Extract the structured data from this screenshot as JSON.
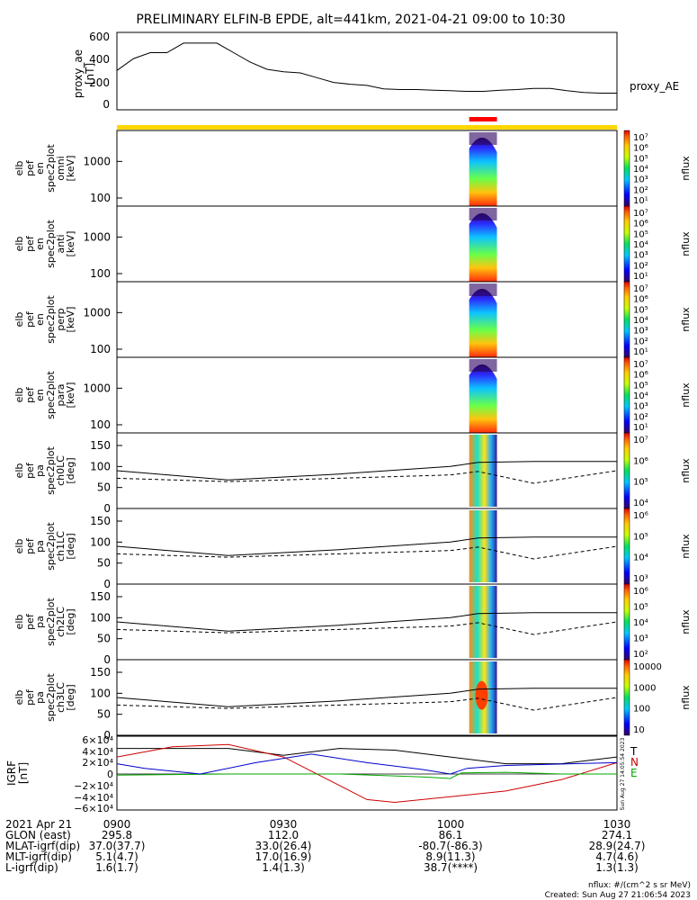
{
  "title": "PRELIMINARY ELFIN-B EPDE, alt=441km, 2021-04-21 09:00 to 10:30",
  "colors": {
    "sci_bar": "#ffd700",
    "sci_zone": "#ff0000",
    "bz": "#000000",
    "bn": "#cc0000",
    "be": "#00aa00",
    "bx_blue": "#0000cc"
  },
  "ae_panel": {
    "ylabel_lines": [
      "proxy_ae",
      "[nT]"
    ],
    "yticks": [
      "600",
      "400",
      "200",
      "0"
    ],
    "legend": "proxy_AE"
  },
  "spec_panels": [
    {
      "label_lines": [
        "elb",
        "pef",
        "en",
        "spec2plot",
        "omni",
        "[keV]"
      ],
      "yticks": [
        "1000",
        "100"
      ],
      "cbar_ticks": [
        "10⁷",
        "10⁶",
        "10⁵",
        "10⁴",
        "10³",
        "10²",
        "10¹"
      ],
      "cbar_label": "nflux"
    },
    {
      "label_lines": [
        "elb",
        "pef",
        "en",
        "spec2plot",
        "anti",
        "[keV]"
      ],
      "yticks": [
        "1000",
        "100"
      ],
      "cbar_ticks": [
        "10⁷",
        "10⁶",
        "10⁵",
        "10⁴",
        "10³",
        "10²",
        "10¹"
      ],
      "cbar_label": "nflux"
    },
    {
      "label_lines": [
        "elb",
        "pef",
        "en",
        "spec2plot",
        "perp",
        "[keV]"
      ],
      "yticks": [
        "1000",
        "100"
      ],
      "cbar_ticks": [
        "10⁷",
        "10⁶",
        "10⁵",
        "10⁴",
        "10³",
        "10²",
        "10¹"
      ],
      "cbar_label": "nflux"
    },
    {
      "label_lines": [
        "elb",
        "pef",
        "en",
        "spec2plot",
        "para",
        "[keV]"
      ],
      "yticks": [
        "1000",
        "100"
      ],
      "cbar_ticks": [
        "10⁷",
        "10⁶",
        "10⁵",
        "10⁴",
        "10³",
        "10²",
        "10¹"
      ],
      "cbar_label": "nflux"
    },
    {
      "label_lines": [
        "elb",
        "pef",
        "pa",
        "spec2plot",
        "ch0LC",
        "[deg]"
      ],
      "yticks": [
        "150",
        "100",
        "50",
        "0"
      ],
      "cbar_ticks": [
        "10⁷",
        "10⁶",
        "10⁵",
        "10⁴"
      ],
      "cbar_label": "nflux"
    },
    {
      "label_lines": [
        "elb",
        "pef",
        "pa",
        "spec2plot",
        "ch1LC",
        "[deg]"
      ],
      "yticks": [
        "150",
        "100",
        "50",
        "0"
      ],
      "cbar_ticks": [
        "10⁶",
        "10⁵",
        "10⁴",
        "10³"
      ],
      "cbar_label": "nflux"
    },
    {
      "label_lines": [
        "elb",
        "pef",
        "pa",
        "spec2plot",
        "ch2LC",
        "[deg]"
      ],
      "yticks": [
        "150",
        "100",
        "50",
        "0"
      ],
      "cbar_ticks": [
        "10⁶",
        "10⁵",
        "10⁴",
        "10³",
        "10²"
      ],
      "cbar_label": "nflux"
    },
    {
      "label_lines": [
        "elb",
        "pef",
        "pa",
        "spec2plot",
        "ch3LC",
        "[deg]"
      ],
      "yticks": [
        "150",
        "100",
        "50",
        "0"
      ],
      "cbar_ticks": [
        "10000",
        "1000",
        "100",
        "10"
      ],
      "cbar_label": "nflux"
    }
  ],
  "igrf_panel": {
    "ylabel_lines": [
      "IGRF",
      "[nT]"
    ],
    "yticks": [
      "6×10⁴",
      "4×10⁴",
      "2×10⁴",
      "0",
      "−2×10⁴",
      "−4×10⁴",
      "−6×10⁴"
    ],
    "legend": [
      "T",
      "N",
      "E"
    ],
    "side_stamp": "Sun Aug 27 14:05:54 2023"
  },
  "bottom_table": {
    "rows": [
      {
        "label": "2021 Apr 21",
        "values": [
          "0900",
          "0930",
          "1000",
          "1030"
        ]
      },
      {
        "label": "GLON (east)",
        "values": [
          "295.8",
          "112.0",
          "86.1",
          "274.1"
        ]
      },
      {
        "label": "MLAT-igrf(dip)",
        "values": [
          "37.0(37.7)",
          "33.0(26.4)",
          "-80.7(-86.3)",
          "28.9(24.7)"
        ]
      },
      {
        "label": "MLT-igrf(dip)",
        "values": [
          "5.1(4.7)",
          "17.0(16.9)",
          "8.9(11.3)",
          "4.7(4.6)"
        ]
      },
      {
        "label": "L-igrf(dip)",
        "values": [
          "1.6(1.7)",
          "1.4(1.3)",
          "38.7(****)",
          "1.3(1.3)"
        ]
      }
    ]
  },
  "footer": {
    "units": "nflux: #/(cm^2 s sr MeV)",
    "created": "Created: Sun Aug 27 21:06:54 2023"
  },
  "chart_data": {
    "type": "line",
    "title": "PRELIMINARY ELFIN-B EPDE, alt=441km, 2021-04-21 09:00 to 10:30",
    "x_range_minutes": [
      0,
      90
    ],
    "x_tick_labels": [
      "0900",
      "0930",
      "1000",
      "1030"
    ],
    "sci_zone_minutes": [
      63.4,
      68.4
    ],
    "proxy_ae": {
      "ylim": [
        0,
        650
      ],
      "x": [
        0,
        3,
        6,
        9,
        12,
        15,
        18,
        21,
        24,
        27,
        30,
        33,
        36,
        39,
        42,
        45,
        48,
        51,
        54,
        57,
        60,
        63,
        66,
        69,
        72,
        75,
        78,
        81,
        84,
        87,
        90
      ],
      "values": [
        330,
        430,
        480,
        480,
        560,
        560,
        560,
        480,
        400,
        340,
        320,
        310,
        270,
        230,
        215,
        205,
        175,
        170,
        170,
        165,
        160,
        155,
        155,
        165,
        170,
        180,
        180,
        160,
        145,
        140,
        140
      ]
    },
    "energy_panels_keV": {
      "ylim_log": [
        60,
        7000
      ]
    },
    "pitch_angle_panels_deg": {
      "ylim": [
        0,
        180
      ],
      "solid_line": {
        "x": [
          0,
          20,
          40,
          60,
          65,
          75,
          90
        ],
        "values": [
          90,
          68,
          82,
          100,
          110,
          112,
          112
        ]
      },
      "dashed_line": {
        "x": [
          0,
          20,
          40,
          60,
          65,
          75,
          90
        ],
        "values": [
          72,
          64,
          72,
          80,
          88,
          60,
          90
        ]
      }
    },
    "igrf": {
      "ylim": [
        -65000,
        65000
      ],
      "series": [
        {
          "name": "T",
          "x": [
            0,
            10,
            20,
            30,
            40,
            50,
            60,
            70,
            80,
            90
          ],
          "values": [
            45000,
            45000,
            45000,
            33000,
            45000,
            42000,
            30000,
            18000,
            18000,
            30000
          ]
        },
        {
          "name": "N",
          "x": [
            0,
            10,
            20,
            30,
            40,
            45,
            50,
            60,
            70,
            80,
            90
          ],
          "values": [
            30000,
            48000,
            52000,
            30000,
            -20000,
            -45000,
            -50000,
            -40000,
            -30000,
            -10000,
            20000
          ]
        },
        {
          "name": "E",
          "x": [
            0,
            20,
            40,
            55,
            60,
            62,
            70,
            80,
            90
          ],
          "values": [
            -2000,
            0,
            0,
            -5000,
            -8000,
            2000,
            3000,
            0,
            0
          ]
        },
        {
          "name": "B_blue",
          "x": [
            0,
            5,
            15,
            25,
            35,
            45,
            55,
            60,
            63,
            70,
            90
          ],
          "values": [
            18000,
            10000,
            0,
            20000,
            35000,
            20000,
            8000,
            0,
            10000,
            15000,
            20000
          ]
        }
      ]
    }
  }
}
